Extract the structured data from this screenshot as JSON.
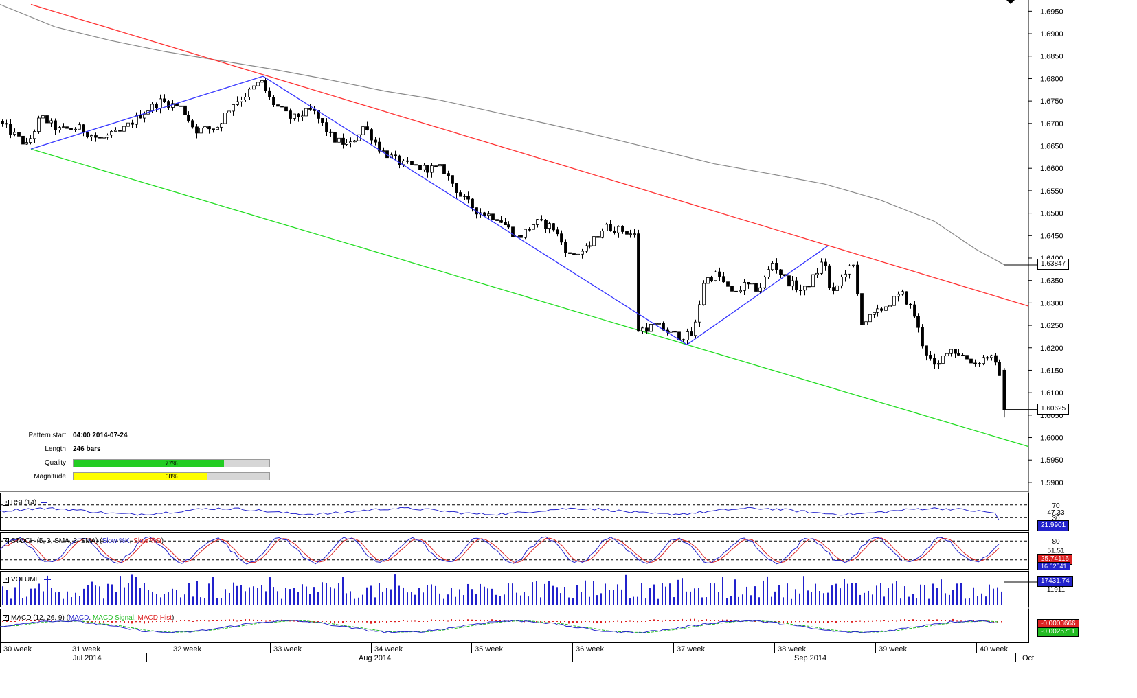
{
  "chart_data": {
    "type": "candlestick",
    "main": {
      "price_axis_ticks": [
        "1.6950",
        "1.6900",
        "1.6850",
        "1.6800",
        "1.6750",
        "1.6700",
        "1.6650",
        "1.6600",
        "1.6550",
        "1.6500",
        "1.6450",
        "1.6400",
        "1.6350",
        "1.6300",
        "1.6250",
        "1.6200",
        "1.6150",
        "1.6100",
        "1.6050",
        "1.6000",
        "1.5950",
        "1.5900"
      ],
      "ylim": [
        1.588,
        1.6975
      ],
      "ma_label": "1.63847",
      "last_price_label": "1.60625",
      "ma_value": 1.63847,
      "last_price": 1.60625,
      "moving_average": [
        {
          "x": 0,
          "y": 1.6965
        },
        {
          "x": 80,
          "y": 1.6915
        },
        {
          "x": 160,
          "y": 1.6885
        },
        {
          "x": 240,
          "y": 1.686
        },
        {
          "x": 320,
          "y": 1.684
        },
        {
          "x": 400,
          "y": 1.682
        },
        {
          "x": 480,
          "y": 1.6797
        },
        {
          "x": 560,
          "y": 1.6772
        },
        {
          "x": 640,
          "y": 1.6752
        },
        {
          "x": 720,
          "y": 1.6725
        },
        {
          "x": 800,
          "y": 1.6698
        },
        {
          "x": 880,
          "y": 1.667
        },
        {
          "x": 960,
          "y": 1.664
        },
        {
          "x": 1040,
          "y": 1.661
        },
        {
          "x": 1120,
          "y": 1.6588
        },
        {
          "x": 1200,
          "y": 1.6565
        },
        {
          "x": 1280,
          "y": 1.653
        },
        {
          "x": 1360,
          "y": 1.6482
        },
        {
          "x": 1420,
          "y": 1.642
        },
        {
          "x": 1462,
          "y": 1.6385
        }
      ],
      "resistance_line": {
        "x1": 45,
        "y1": 1.6965,
        "x2": 1497,
        "y2": 1.6293
      },
      "support_line": {
        "x1": 45,
        "y1": 1.6643,
        "x2": 1497,
        "y2": 1.598
      },
      "pattern_path": [
        {
          "x": 45,
          "y": 1.6643
        },
        {
          "x": 383,
          "y": 1.6805
        },
        {
          "x": 1000,
          "y": 1.6207
        },
        {
          "x": 1205,
          "y": 1.6427
        }
      ],
      "anchors": [
        {
          "x": 3,
          "y": 1.6705
        },
        {
          "x": 45,
          "y": 1.665
        },
        {
          "x": 65,
          "y": 1.6715
        },
        {
          "x": 90,
          "y": 1.6685
        },
        {
          "x": 120,
          "y": 1.669
        },
        {
          "x": 150,
          "y": 1.6665
        },
        {
          "x": 180,
          "y": 1.668
        },
        {
          "x": 210,
          "y": 1.672
        },
        {
          "x": 240,
          "y": 1.675
        },
        {
          "x": 270,
          "y": 1.6735
        },
        {
          "x": 290,
          "y": 1.6685
        },
        {
          "x": 320,
          "y": 1.669
        },
        {
          "x": 345,
          "y": 1.6745
        },
        {
          "x": 365,
          "y": 1.6765
        },
        {
          "x": 385,
          "y": 1.6795
        },
        {
          "x": 400,
          "y": 1.675
        },
        {
          "x": 430,
          "y": 1.671
        },
        {
          "x": 460,
          "y": 1.673
        },
        {
          "x": 490,
          "y": 1.6665
        },
        {
          "x": 515,
          "y": 1.665
        },
        {
          "x": 535,
          "y": 1.6695
        },
        {
          "x": 560,
          "y": 1.664
        },
        {
          "x": 590,
          "y": 1.661
        },
        {
          "x": 620,
          "y": 1.66
        },
        {
          "x": 650,
          "y": 1.66
        },
        {
          "x": 675,
          "y": 1.654
        },
        {
          "x": 700,
          "y": 1.6505
        },
        {
          "x": 730,
          "y": 1.649
        },
        {
          "x": 760,
          "y": 1.6445
        },
        {
          "x": 785,
          "y": 1.648
        },
        {
          "x": 810,
          "y": 1.647
        },
        {
          "x": 835,
          "y": 1.6405
        },
        {
          "x": 860,
          "y": 1.642
        },
        {
          "x": 885,
          "y": 1.647
        },
        {
          "x": 915,
          "y": 1.646
        },
        {
          "x": 930,
          "y": 1.645
        },
        {
          "x": 935,
          "y": 1.624
        },
        {
          "x": 960,
          "y": 1.625
        },
        {
          "x": 985,
          "y": 1.623
        },
        {
          "x": 1000,
          "y": 1.6225
        },
        {
          "x": 1015,
          "y": 1.623
        },
        {
          "x": 1030,
          "y": 1.635
        },
        {
          "x": 1050,
          "y": 1.6365
        },
        {
          "x": 1070,
          "y": 1.632
        },
        {
          "x": 1090,
          "y": 1.634
        },
        {
          "x": 1110,
          "y": 1.633
        },
        {
          "x": 1130,
          "y": 1.639
        },
        {
          "x": 1150,
          "y": 1.635
        },
        {
          "x": 1175,
          "y": 1.6325
        },
        {
          "x": 1195,
          "y": 1.637
        },
        {
          "x": 1205,
          "y": 1.64
        },
        {
          "x": 1215,
          "y": 1.631
        },
        {
          "x": 1235,
          "y": 1.637
        },
        {
          "x": 1248,
          "y": 1.638
        },
        {
          "x": 1260,
          "y": 1.6255
        },
        {
          "x": 1280,
          "y": 1.6275
        },
        {
          "x": 1300,
          "y": 1.63
        },
        {
          "x": 1318,
          "y": 1.632
        },
        {
          "x": 1335,
          "y": 1.628
        },
        {
          "x": 1350,
          "y": 1.62
        },
        {
          "x": 1368,
          "y": 1.615
        },
        {
          "x": 1385,
          "y": 1.62
        },
        {
          "x": 1405,
          "y": 1.6185
        },
        {
          "x": 1425,
          "y": 1.6165
        },
        {
          "x": 1445,
          "y": 1.6185
        },
        {
          "x": 1460,
          "y": 1.6145
        }
      ],
      "final_candle": {
        "x": 1462,
        "open": 1.615,
        "close": 1.6062,
        "high": 1.6155,
        "low": 1.6045
      }
    },
    "time_axis": {
      "weeks": [
        {
          "label": "30 week",
          "x": 0
        },
        {
          "label": "31 week",
          "x": 100
        },
        {
          "label": "32 week",
          "x": 247
        },
        {
          "label": "33 week",
          "x": 393
        },
        {
          "label": "34 week",
          "x": 540
        },
        {
          "label": "35 week",
          "x": 686
        },
        {
          "label": "36 week",
          "x": 833
        },
        {
          "label": "37 week",
          "x": 980
        },
        {
          "label": "38 week",
          "x": 1127
        },
        {
          "label": "39 week",
          "x": 1274
        },
        {
          "label": "40 week",
          "x": 1421
        }
      ],
      "months": [
        {
          "label": "Jul 2014",
          "x": 106
        },
        {
          "label": "Aug 2014",
          "x": 522
        },
        {
          "label": "Sep 2014",
          "x": 1156
        },
        {
          "label": "Oct",
          "x": 1488
        }
      ],
      "month_dividers": [
        213,
        833,
        1478
      ]
    },
    "pattern_info": {
      "start_label": "Pattern start",
      "start_value": "04:00 2014-07-24",
      "length_label": "Length",
      "length_value": "246 bars",
      "quality_label": "Quality",
      "quality_value": "77%",
      "quality_fraction": 0.77,
      "quality_color": "#22cc22",
      "magnitude_label": "Magnitude",
      "magnitude_value": "68%",
      "magnitude_fraction": 0.68,
      "magnitude_color": "#ffff00"
    },
    "rsi": {
      "title": "RSI (14)",
      "levels": [
        "70",
        "47.33",
        "30"
      ],
      "last_value": "21.9901",
      "color": "#2222cc"
    },
    "stoch": {
      "title": "STOCH (5, 3, SMA, 3, SMA)",
      "k_label": "Slow %K",
      "d_label": "Slow %D",
      "levels": [
        "80",
        "51.51",
        "20"
      ],
      "value_d": "25.74116",
      "value_k": "16.62541",
      "k_color": "#2222cc",
      "d_color": "#dd2222"
    },
    "volume": {
      "title": "VOLUME",
      "level": "11911",
      "last_value": "17431.74",
      "color": "#2222cc"
    },
    "macd": {
      "title": "MACD (12, 26, 9)",
      "macd_label": "MACD",
      "signal_label": "MACD Signal",
      "hist_label": "MACD Hist",
      "value_macd": "-0.0003666",
      "value_signal": "-0.0025711",
      "macd_color": "#2222cc",
      "signal_color": "#22bb22",
      "hist_color": "#dd2222"
    },
    "colors": {
      "candle": "#000000",
      "resistance": "#ff3333",
      "support": "#22dd22",
      "pattern": "#3333ff",
      "moving_average": "#888888"
    }
  }
}
